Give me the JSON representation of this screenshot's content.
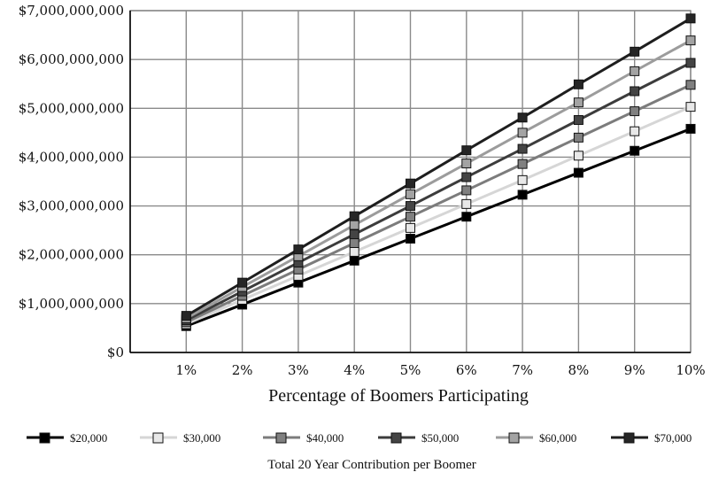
{
  "chart_data": {
    "type": "line",
    "xlabel": "Percentage of Boomers Participating",
    "legend_title": "Total 20 Year Contribution per Boomer",
    "categories": [
      "1%",
      "2%",
      "3%",
      "4%",
      "5%",
      "6%",
      "7%",
      "8%",
      "9%",
      "10%"
    ],
    "y_ticks": [
      "$0",
      "$1,000,000,000",
      "$2,000,000,000",
      "$3,000,000,000",
      "$4,000,000,000",
      "$5,000,000,000",
      "$6,000,000,000",
      "$7,000,000,000"
    ],
    "ylim": [
      0,
      7000000000
    ],
    "grid": true,
    "legend_position": "bottom",
    "series": [
      {
        "name": "$20,000",
        "line_color": "#000000",
        "marker_color": "#000000",
        "values": [
          540000000,
          980000000,
          1430000000,
          1880000000,
          2330000000,
          2780000000,
          3230000000,
          3680000000,
          4130000000,
          4580000000
        ]
      },
      {
        "name": "$30,000",
        "line_color": "#d6d6d6",
        "marker_color": "#e8e8e8",
        "values": [
          580000000,
          1080000000,
          1570000000,
          2060000000,
          2550000000,
          3040000000,
          3530000000,
          4030000000,
          4530000000,
          5030000000
        ]
      },
      {
        "name": "$40,000",
        "line_color": "#7c7c7c",
        "marker_color": "#808080",
        "values": [
          620000000,
          1160000000,
          1700000000,
          2240000000,
          2780000000,
          3320000000,
          3860000000,
          4400000000,
          4940000000,
          5480000000
        ]
      },
      {
        "name": "$50,000",
        "line_color": "#3c3c3c",
        "marker_color": "#444444",
        "values": [
          660000000,
          1250000000,
          1840000000,
          2420000000,
          3000000000,
          3590000000,
          4170000000,
          4760000000,
          5350000000,
          5930000000
        ]
      },
      {
        "name": "$60,000",
        "line_color": "#9c9c9c",
        "marker_color": "#a3a3a3",
        "values": [
          700000000,
          1340000000,
          1970000000,
          2610000000,
          3240000000,
          3870000000,
          4500000000,
          5120000000,
          5760000000,
          6390000000
        ]
      },
      {
        "name": "$70,000",
        "line_color": "#1e1e1e",
        "marker_color": "#262626",
        "values": [
          750000000,
          1430000000,
          2110000000,
          2790000000,
          3460000000,
          4140000000,
          4810000000,
          5490000000,
          6160000000,
          6840000000
        ]
      }
    ]
  }
}
